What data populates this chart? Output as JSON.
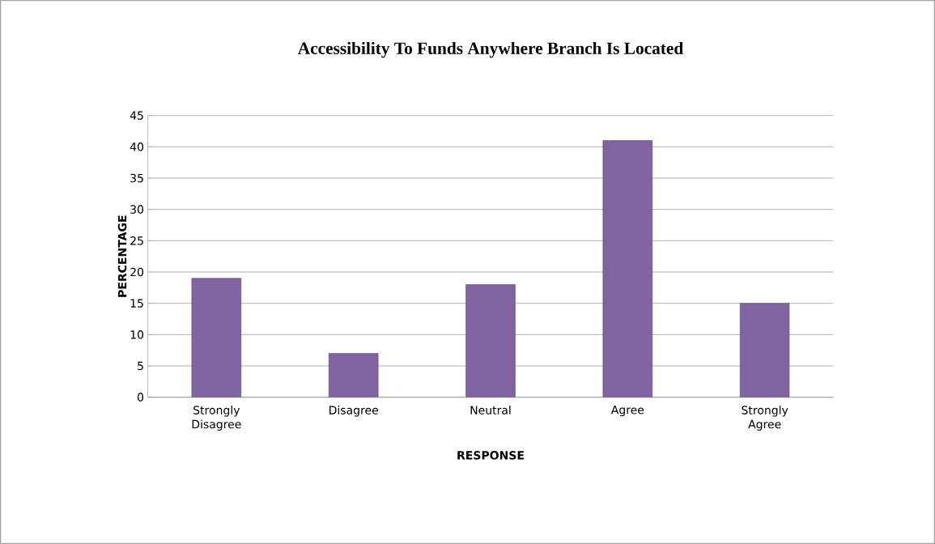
{
  "chart_data": {
    "type": "bar",
    "title": "Accessibility To Funds Anywhere Branch Is Located",
    "xlabel": "RESPONSE",
    "ylabel": "PERCENTAGE",
    "categories": [
      "Strongly Disagree",
      "Disagree",
      "Neutral",
      "Agree",
      "Strongly Agree"
    ],
    "values": [
      19,
      7,
      18,
      41,
      15
    ],
    "color": "#8064a2",
    "ylim": [
      0,
      45
    ],
    "yticks": [
      0,
      5,
      10,
      15,
      20,
      25,
      30,
      35,
      40,
      45
    ],
    "grid": "y"
  }
}
